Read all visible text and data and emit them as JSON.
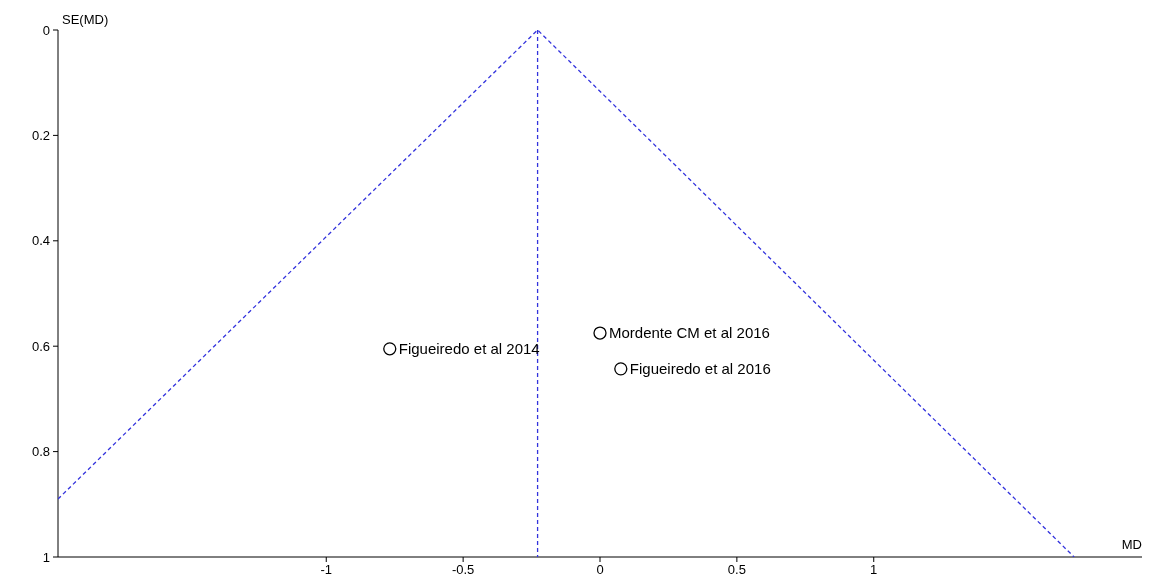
{
  "chart_data": {
    "type": "scatter",
    "xlabel": "MD",
    "ylabel": "SE(MD)",
    "xlim": [
      -1.98,
      1.98
    ],
    "ylim": [
      1,
      0
    ],
    "xticks": [
      -1,
      -0.5,
      0,
      0.5,
      1
    ],
    "yticks": [
      0,
      0.2,
      0.4,
      0.6,
      0.8,
      1
    ],
    "grid": false,
    "series": [
      {
        "type": "line",
        "color": "#3333dd",
        "line_style": "dashed",
        "marker": "none",
        "x": [
          -1.98,
          -0.228,
          1.732
        ],
        "values": [
          0.89,
          0,
          1
        ]
      },
      {
        "color": "#000000",
        "marker": "circle",
        "x": [
          -0.768,
          0,
          0.076
        ],
        "values": [
          0.605,
          0.575,
          0.643
        ]
      }
    ],
    "ref_lines": [
      {
        "axis": "x",
        "value": -0.228,
        "color": "#3333dd",
        "line_style": "dashed"
      }
    ],
    "annotations": [
      {
        "text": "Figueiredo et al 2014",
        "x": -0.768,
        "y": 0.605
      },
      {
        "text": "Mordente CM et al 2016",
        "x": 0,
        "y": 0.575
      },
      {
        "text": "Figueiredo et al 2016",
        "x": 0.076,
        "y": 0.643
      }
    ]
  }
}
